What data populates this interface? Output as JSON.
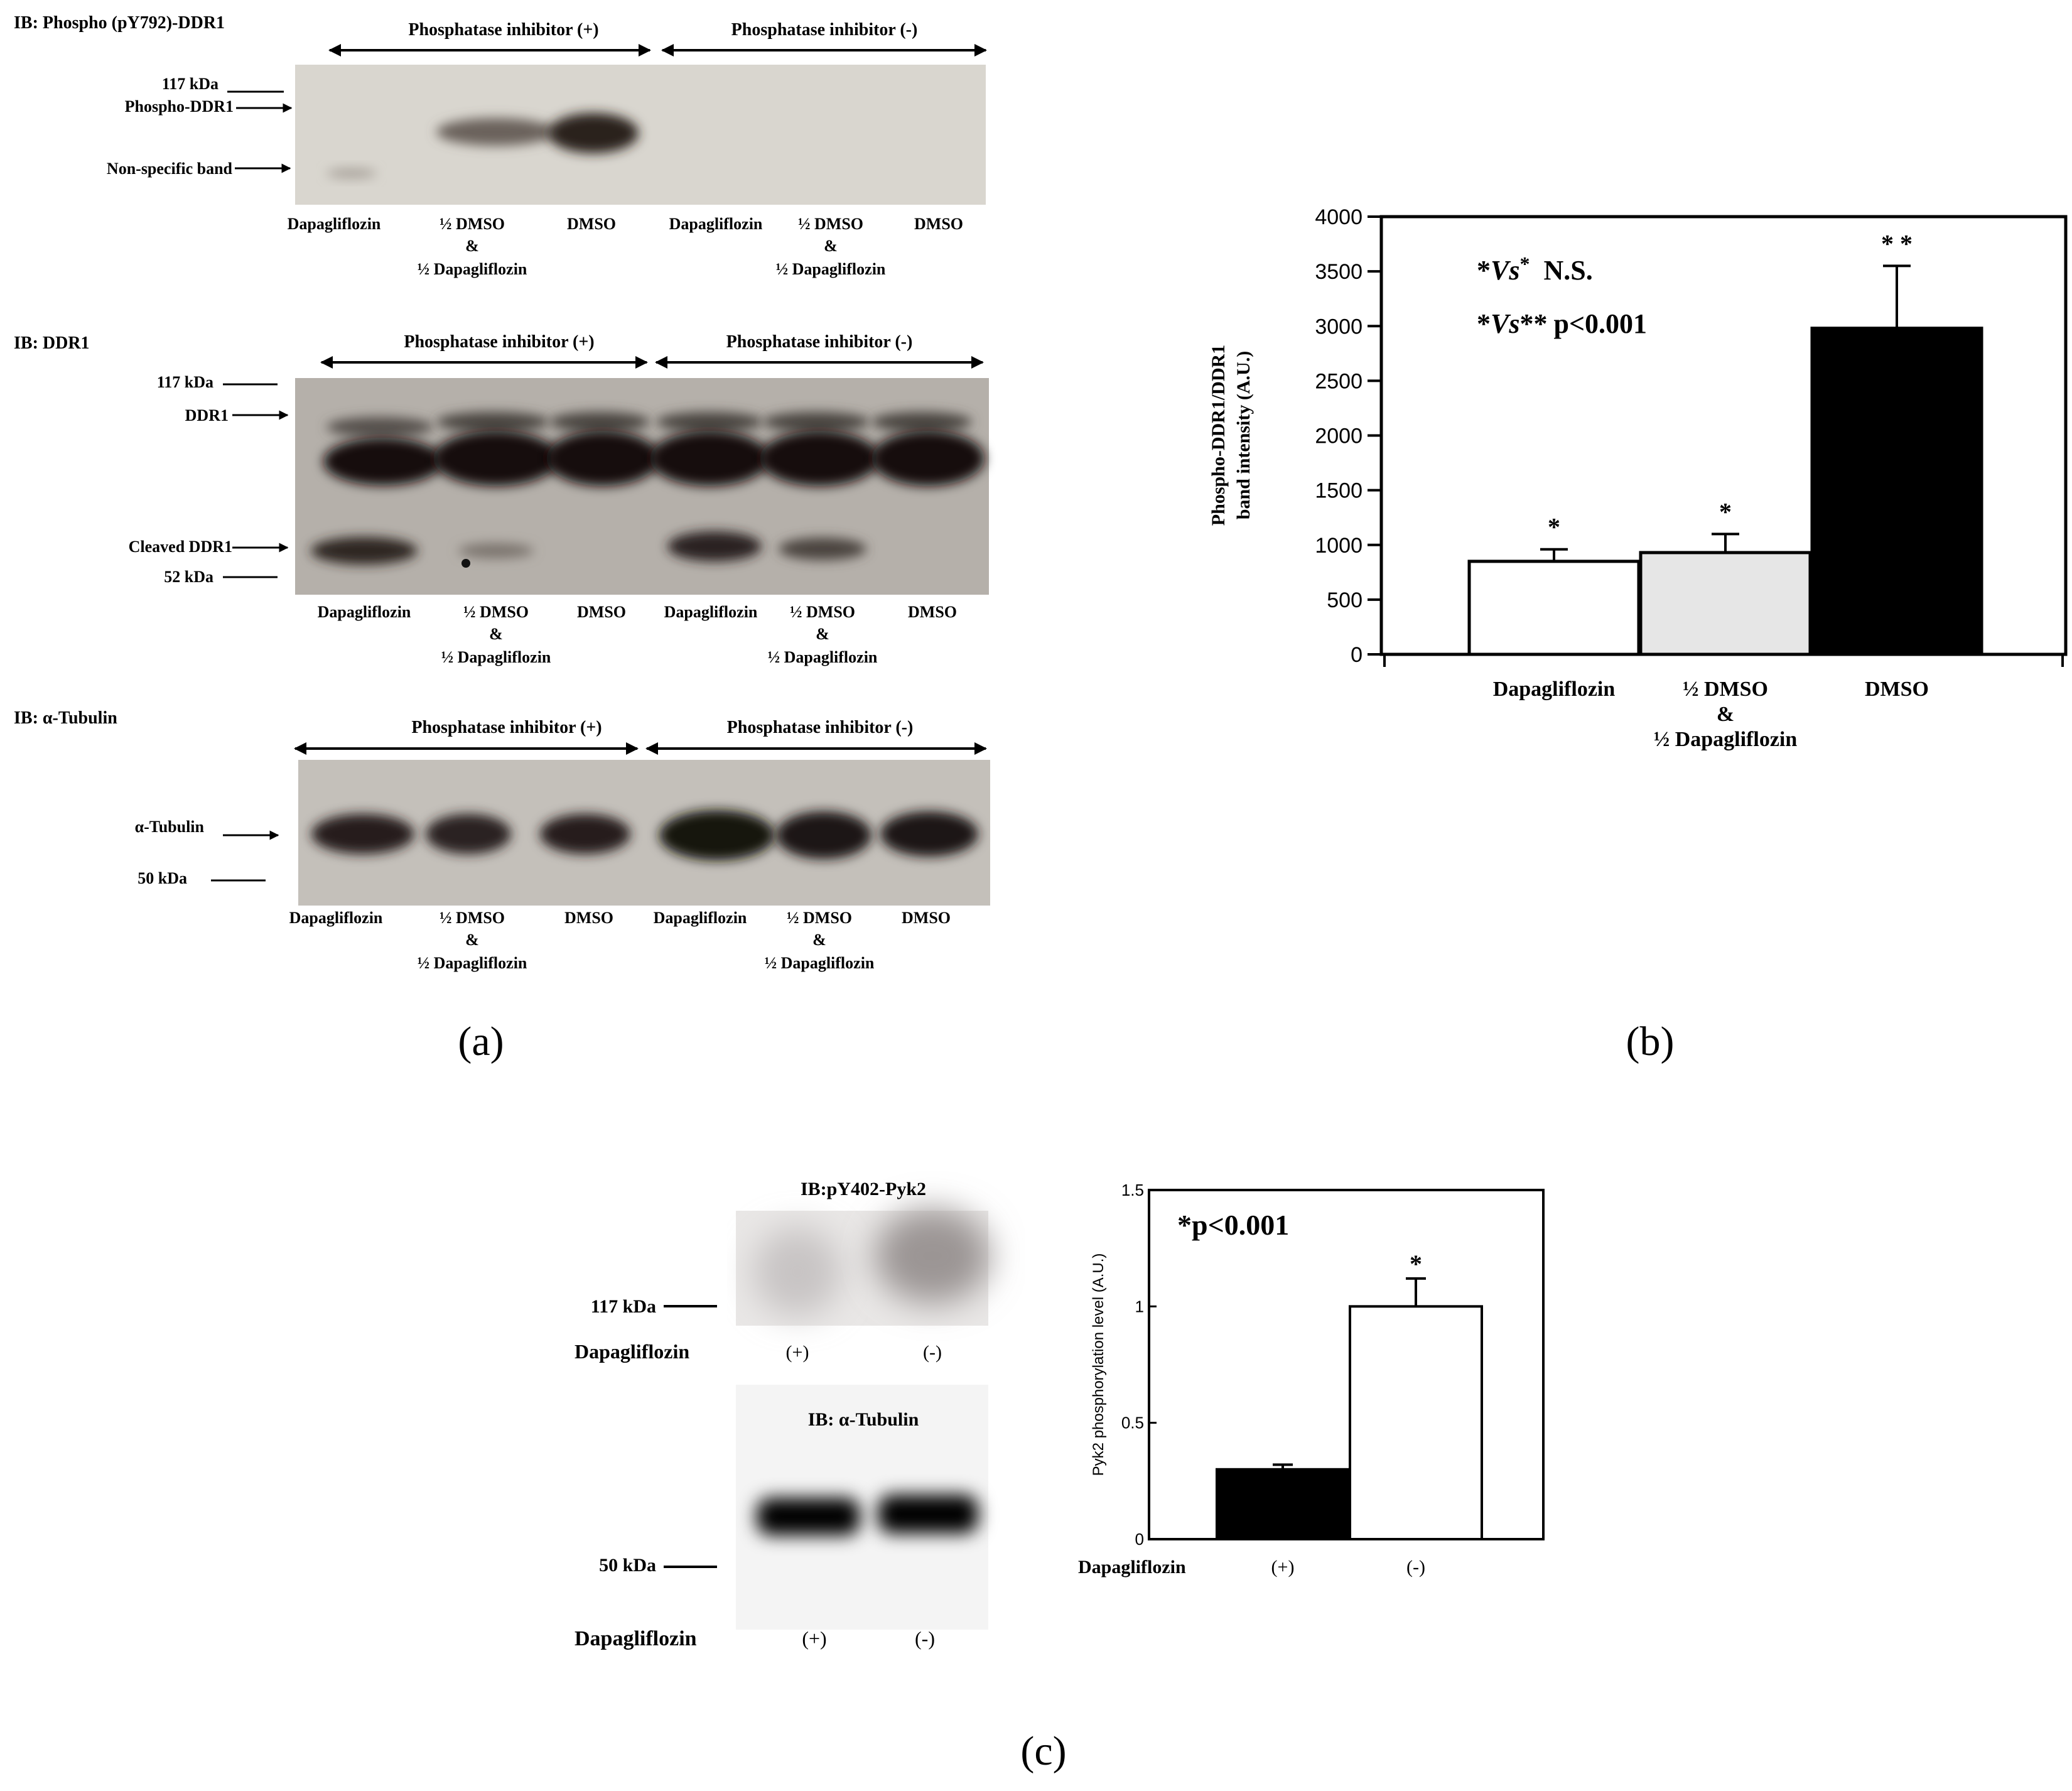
{
  "panels": {
    "a": {
      "label": "(a)",
      "blots": [
        {
          "ib_label": "IB: Phospho (pY792)-DDR1",
          "groups": [
            "Phosphatase inhibitor (+)",
            "Phosphatase inhibitor (-)"
          ],
          "markers": [
            {
              "text": "117 kDa",
              "style": "line"
            },
            {
              "text": "Phospho-DDR1",
              "style": "arrow"
            },
            {
              "text": "Non-specific band",
              "style": "arrow"
            }
          ],
          "lanes": [
            {
              "line1": "Dapagliflozin"
            },
            {
              "line1": "½ DMSO",
              "line2": "&",
              "line3": "½ Dapagliflozin"
            },
            {
              "line1": "DMSO"
            },
            {
              "line1": "Dapagliflozin"
            },
            {
              "line1": "½ DMSO",
              "line2": "&",
              "line3": "½ Dapagliflozin"
            },
            {
              "line1": "DMSO"
            }
          ]
        },
        {
          "ib_label": "IB: DDR1",
          "groups": [
            "Phosphatase inhibitor (+)",
            "Phosphatase inhibitor (-)"
          ],
          "markers": [
            {
              "text": "117 kDa",
              "style": "line"
            },
            {
              "text": "DDR1",
              "style": "arrow"
            },
            {
              "text": "Cleaved DDR1",
              "style": "arrow"
            },
            {
              "text": "52 kDa",
              "style": "line"
            }
          ],
          "lanes": [
            {
              "line1": "Dapagliflozin"
            },
            {
              "line1": "½ DMSO",
              "line2": "&",
              "line3": "½ Dapagliflozin"
            },
            {
              "line1": "DMSO"
            },
            {
              "line1": "Dapagliflozin"
            },
            {
              "line1": "½ DMSO",
              "line2": "&",
              "line3": "½ Dapagliflozin"
            },
            {
              "line1": "DMSO"
            }
          ]
        },
        {
          "ib_label": "IB: α-Tubulin",
          "groups": [
            "Phosphatase inhibitor (+)",
            "Phosphatase inhibitor (-)"
          ],
          "markers": [
            {
              "text": "α-Tubulin",
              "style": "arrow"
            },
            {
              "text": "50 kDa",
              "style": "line"
            }
          ],
          "lanes": [
            {
              "line1": "Dapagliflozin"
            },
            {
              "line1": "½ DMSO",
              "line2": "&",
              "line3": "½ Dapagliflozin"
            },
            {
              "line1": "DMSO"
            },
            {
              "line1": "Dapagliflozin"
            },
            {
              "line1": "½ DMSO",
              "line2": "&",
              "line3": "½ Dapagliflozin"
            },
            {
              "line1": "DMSO"
            }
          ]
        }
      ]
    },
    "b": {
      "label": "(b)"
    },
    "c": {
      "label": "(c)",
      "blot_top_title": "IB:pY402-Pyk2",
      "blot_top_marker": "117 kDa",
      "blot_bottom_title": "IB: α-Tubulin",
      "blot_bottom_marker": "50 kDa",
      "row_label": "Dapagliflozin",
      "lane_labels": [
        "(+)",
        "(-)"
      ]
    }
  },
  "chart_data": [
    {
      "type": "bar",
      "panel": "b",
      "title": "",
      "ylabel": "Phospho-DDR1/DDR1 band intensity (A.U.)",
      "xlabel": "",
      "ylim": [
        0,
        4000
      ],
      "yticks": [
        0,
        500,
        1000,
        1500,
        2000,
        2500,
        3000,
        3500,
        4000
      ],
      "ytick_labels": [
        "0",
        "500",
        "1000",
        "1500",
        "2000",
        "2500",
        "3000",
        "3500",
        "4000"
      ],
      "categories": [
        {
          "line1": "Dapagliflozin"
        },
        {
          "line1": "½ DMSO",
          "line2": "&",
          "line3": "½ Dapagliflozin"
        },
        {
          "line1": "DMSO"
        }
      ],
      "values": [
        850,
        930,
        2980
      ],
      "errors": [
        110,
        170,
        570
      ],
      "significance": [
        "*",
        "*",
        "**"
      ],
      "fills": [
        "#ffffff",
        "#e6e6e6",
        "#000000"
      ],
      "grid": false,
      "annotations": {
        "line1_star1": "*",
        "line1_vs": "Vs",
        "line1_star2": "*",
        "line1_result": "N.S.",
        "line2_star1": "*",
        "line2_vs": "Vs",
        "line2_star2": "**",
        "line2_result": "p<0.001"
      }
    },
    {
      "type": "bar",
      "panel": "c",
      "title": "",
      "ylabel": "Pyk2 phosphorylation level (A.U.)",
      "xlabel": "",
      "ylim": [
        0,
        1.5
      ],
      "yticks": [
        0,
        0.5,
        1,
        1.5
      ],
      "ytick_labels": [
        "0",
        "0.5",
        "1",
        "1.5"
      ],
      "row_label": "Dapagliflozin",
      "categories": [
        "(+)",
        "(-)"
      ],
      "values": [
        0.3,
        1.0
      ],
      "errors": [
        0.02,
        0.12
      ],
      "significance": [
        "",
        "*"
      ],
      "fills": [
        "#000000",
        "#ffffff"
      ],
      "grid": false,
      "annotation": "*p<0.001"
    }
  ]
}
